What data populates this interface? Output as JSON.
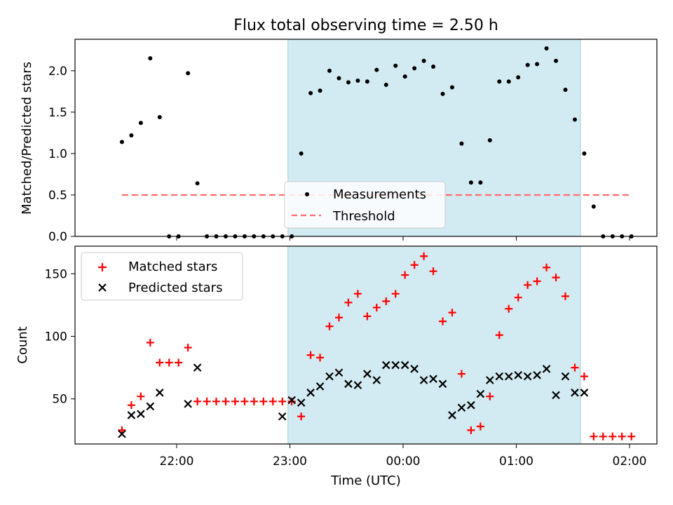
{
  "chart_data": [
    {
      "type": "scatter",
      "title": "Flux total observing time = 2.50 h",
      "ylabel": "Matched/Predicted stars",
      "xlabel": "",
      "ylim": [
        0,
        2.38
      ],
      "yticks": [
        0.0,
        0.5,
        1.0,
        1.5,
        2.0
      ],
      "ytick_labels": [
        "0.0",
        "0.5",
        "1.0",
        "1.5",
        "2.0"
      ],
      "xticks": [
        "22:00",
        "23:00",
        "00:00",
        "01:00",
        "02:00"
      ],
      "shaded_interval": {
        "start": "22:59",
        "end": "01:34",
        "color": "#add8e6"
      },
      "legend": {
        "placement": "lower center",
        "entries": [
          "Measurements",
          "Threshold"
        ]
      },
      "threshold": {
        "name": "Threshold",
        "value": 0.5,
        "from": "21:31",
        "to": "02:00",
        "color": "#ff6b6b"
      },
      "series": [
        {
          "name": "Measurements",
          "marker": "dot",
          "color": "#000000",
          "x": [
            "21:31",
            "21:36",
            "21:41",
            "21:46",
            "21:51",
            "21:56",
            "22:01",
            "22:06",
            "22:11",
            "22:16",
            "22:21",
            "22:26",
            "22:31",
            "22:36",
            "22:41",
            "22:46",
            "22:51",
            "22:56",
            "23:01",
            "23:06",
            "23:11",
            "23:16",
            "23:21",
            "23:26",
            "23:31",
            "23:36",
            "23:41",
            "23:46",
            "23:51",
            "23:56",
            "00:01",
            "00:06",
            "00:11",
            "00:16",
            "00:21",
            "00:26",
            "00:31",
            "00:36",
            "00:41",
            "00:46",
            "00:51",
            "00:56",
            "01:01",
            "01:06",
            "01:11",
            "01:16",
            "01:21",
            "01:26",
            "01:31",
            "01:36",
            "01:41",
            "01:46",
            "01:51",
            "01:56",
            "02:01"
          ],
          "y": [
            1.14,
            1.22,
            1.37,
            2.15,
            1.44,
            0.0,
            0.0,
            1.97,
            0.64,
            0.0,
            0.0,
            0.0,
            0.0,
            0.0,
            0.0,
            0.0,
            0.0,
            0.0,
            0.0,
            1.0,
            1.73,
            1.76,
            2.0,
            1.91,
            1.86,
            1.88,
            1.87,
            2.01,
            1.83,
            2.06,
            1.93,
            2.03,
            2.12,
            2.05,
            1.72,
            1.8,
            1.12,
            0.65,
            0.65,
            1.16,
            1.87,
            1.87,
            1.92,
            2.07,
            2.08,
            2.27,
            2.12,
            1.77,
            1.41,
            1.0,
            0.36,
            0.0,
            0.0,
            0.0,
            0.0
          ]
        }
      ]
    },
    {
      "type": "scatter",
      "title": "",
      "ylabel": "Count",
      "xlabel": "Time (UTC)",
      "ylim": [
        14,
        172
      ],
      "yticks": [
        50,
        100,
        150
      ],
      "ytick_labels": [
        "50",
        "100",
        "150"
      ],
      "xticks": [
        "22:00",
        "23:00",
        "00:00",
        "01:00",
        "02:00"
      ],
      "shaded_interval": {
        "start": "22:59",
        "end": "01:34",
        "color": "#add8e6"
      },
      "legend": {
        "placement": "upper left",
        "entries": [
          "Matched stars",
          "Predicted stars"
        ]
      },
      "series": [
        {
          "name": "Matched stars",
          "marker": "plus",
          "color": "#ff0000",
          "x": [
            "21:31",
            "21:36",
            "21:41",
            "21:46",
            "21:51",
            "21:56",
            "22:01",
            "22:06",
            "22:11",
            "22:16",
            "22:21",
            "22:26",
            "22:31",
            "22:36",
            "22:41",
            "22:46",
            "22:51",
            "22:56",
            "23:01",
            "23:06",
            "23:11",
            "23:16",
            "23:21",
            "23:26",
            "23:31",
            "23:36",
            "23:41",
            "23:46",
            "23:51",
            "23:56",
            "00:01",
            "00:06",
            "00:11",
            "00:16",
            "00:21",
            "00:26",
            "00:31",
            "00:36",
            "00:41",
            "00:46",
            "00:51",
            "00:56",
            "01:01",
            "01:06",
            "01:11",
            "01:16",
            "01:21",
            "01:26",
            "01:31",
            "01:36",
            "01:41",
            "01:46",
            "01:51",
            "01:56",
            "02:01"
          ],
          "y": [
            25,
            45,
            52,
            95,
            79,
            79,
            79,
            91,
            48,
            48,
            48,
            48,
            48,
            48,
            48,
            48,
            48,
            48,
            48,
            36,
            85,
            83,
            108,
            115,
            127,
            134,
            116,
            123,
            128,
            134,
            149,
            157,
            164,
            152,
            112,
            119,
            70,
            25,
            28,
            52,
            101,
            122,
            131,
            141,
            144,
            155,
            147,
            132,
            75,
            68,
            20,
            20,
            20,
            20,
            20
          ]
        },
        {
          "name": "Predicted stars",
          "marker": "x",
          "color": "#000000",
          "x": [
            "21:31",
            "21:36",
            "21:41",
            "21:46",
            "21:51",
            "22:06",
            "22:11",
            "22:56",
            "23:01",
            "23:06",
            "23:11",
            "23:16",
            "23:21",
            "23:26",
            "23:31",
            "23:36",
            "23:41",
            "23:46",
            "23:51",
            "23:56",
            "00:01",
            "00:06",
            "00:11",
            "00:16",
            "00:21",
            "00:26",
            "00:31",
            "00:36",
            "00:41",
            "00:46",
            "00:51",
            "00:56",
            "01:01",
            "01:06",
            "01:11",
            "01:16",
            "01:21",
            "01:26",
            "01:31",
            "01:36"
          ],
          "y": [
            22,
            37,
            38,
            44,
            55,
            46,
            75,
            36,
            49,
            47,
            55,
            60,
            68,
            71,
            62,
            61,
            70,
            65,
            77,
            77,
            77,
            74,
            65,
            66,
            62,
            37,
            43,
            45,
            54,
            65,
            68,
            68,
            69,
            68,
            69,
            74,
            53,
            68,
            55,
            55
          ]
        }
      ]
    }
  ]
}
